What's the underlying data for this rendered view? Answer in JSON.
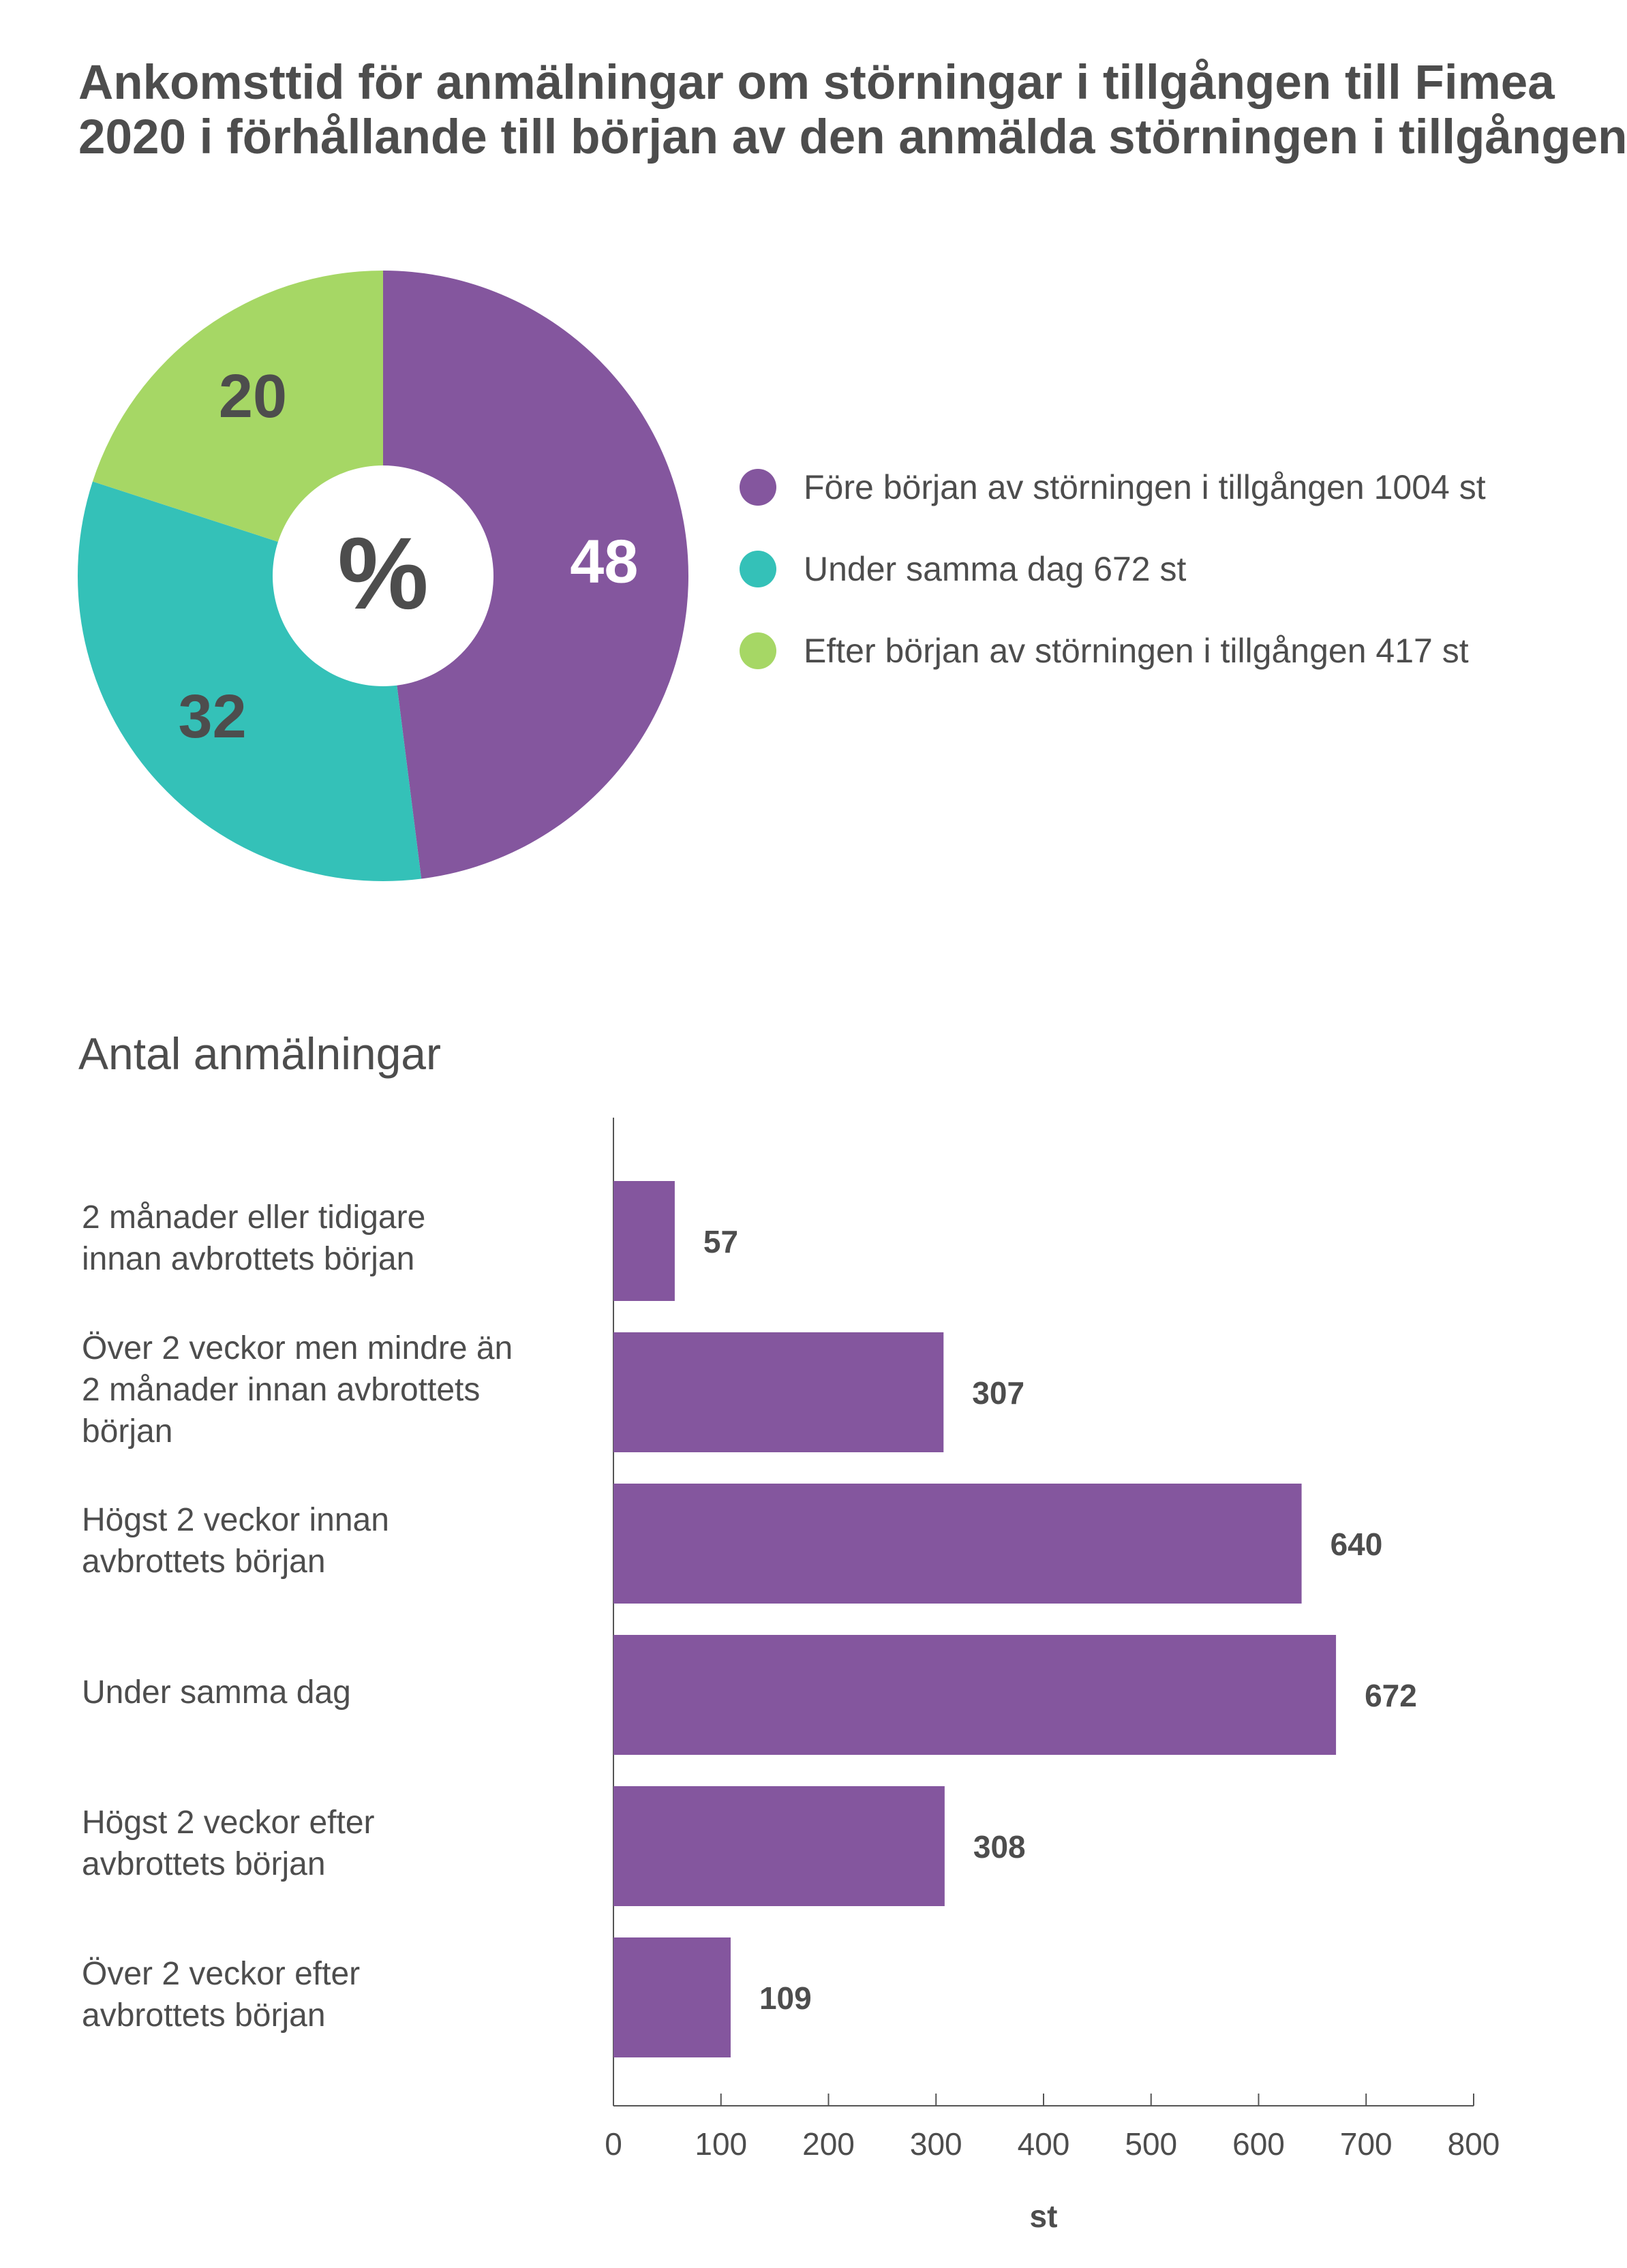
{
  "chart_data": [
    {
      "type": "pie",
      "title_lines": [
        "Ankomsttid för anmälningar om störningar i tillgången till Fimea",
        "2020 i förhållande till början av den anmälda störningen i tillgången"
      ],
      "center_label": "%",
      "slices": [
        {
          "label": "48",
          "value": 48,
          "color": "#84569e",
          "label_color": "#ffffff",
          "legend": "Före början av störningen i tillgången 1004 st"
        },
        {
          "label": "32",
          "value": 32,
          "color": "#34c1b8",
          "label_color": "#4d4d4d",
          "legend": "Under samma dag 672 st"
        },
        {
          "label": "20",
          "value": 20,
          "color": "#a6d765",
          "label_color": "#4d4d4d",
          "legend": "Efter början av störningen i tillgången 417 st"
        }
      ]
    },
    {
      "type": "bar",
      "orientation": "horizontal",
      "title": "Antal anmälningar",
      "categories": [
        [
          "2 månader eller tidigare",
          "innan avbrottets början"
        ],
        [
          "Över 2 veckor men mindre än",
          "2 månader innan avbrottets",
          "början"
        ],
        [
          "Högst 2 veckor innan",
          "avbrottets början"
        ],
        [
          "Under samma dag"
        ],
        [
          "Högst 2 veckor efter",
          "avbrottets början"
        ],
        [
          "Över 2 veckor efter",
          "avbrottets början"
        ]
      ],
      "values": [
        57,
        307,
        640,
        672,
        308,
        109
      ],
      "value_labels": [
        "57",
        "307",
        "640",
        "672",
        "308",
        "109"
      ],
      "bar_color": "#84569e",
      "xlim": [
        0,
        800
      ],
      "xticks": [
        0,
        100,
        200,
        300,
        400,
        500,
        600,
        700,
        800
      ],
      "xtick_labels": [
        "0",
        "100",
        "200",
        "300",
        "400",
        "500",
        "600",
        "700",
        "800"
      ],
      "xlabel": "st"
    }
  ]
}
